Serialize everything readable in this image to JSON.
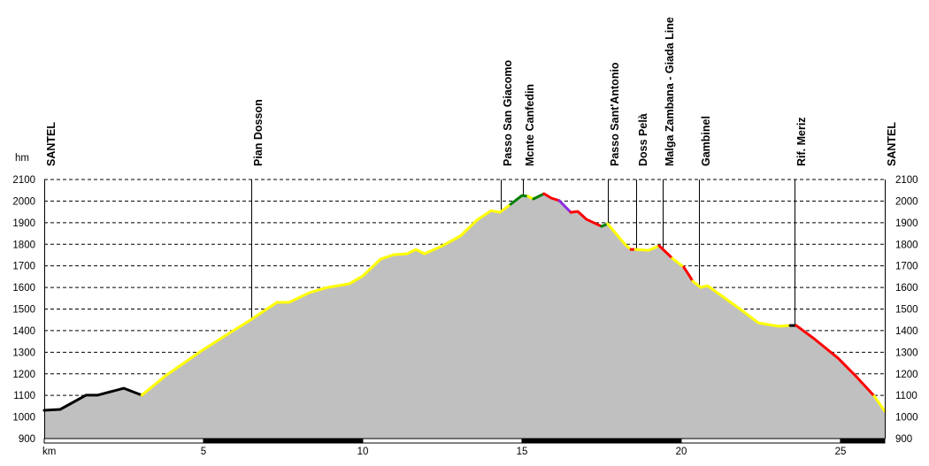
{
  "chart_data": {
    "type": "area",
    "title": "",
    "xlabel": "km",
    "ylabel": "hm",
    "xlim": [
      0,
      26.39
    ],
    "ylim": [
      900,
      2100
    ],
    "yticks": [
      900,
      1000,
      1100,
      1200,
      1300,
      1400,
      1500,
      1600,
      1700,
      1800,
      1900,
      2000,
      2100
    ],
    "xticks": [
      5,
      10,
      15,
      20,
      25
    ],
    "grid": true,
    "fill_color": "#c0c0c0",
    "segments": [
      {
        "color": "#000000",
        "points": [
          [
            0,
            1031
          ],
          [
            0.5,
            1035
          ],
          [
            1.31,
            1101
          ],
          [
            1.67,
            1101
          ],
          [
            2.5,
            1133
          ],
          [
            3.06,
            1101
          ]
        ]
      },
      {
        "color": "#ffff00",
        "points": [
          [
            3.06,
            1101
          ],
          [
            3.81,
            1191
          ],
          [
            4.92,
            1305
          ],
          [
            5.75,
            1383
          ],
          [
            6.47,
            1449
          ],
          [
            7.31,
            1531
          ],
          [
            7.69,
            1531
          ],
          [
            8.33,
            1576
          ],
          [
            8.89,
            1600
          ],
          [
            9.58,
            1617
          ],
          [
            10.0,
            1653
          ],
          [
            10.56,
            1731
          ],
          [
            10.97,
            1752
          ],
          [
            11.39,
            1756
          ],
          [
            11.67,
            1776
          ],
          [
            11.94,
            1756
          ],
          [
            12.5,
            1793
          ],
          [
            13.06,
            1838
          ],
          [
            13.61,
            1915
          ],
          [
            14.03,
            1956
          ],
          [
            14.31,
            1948
          ],
          [
            14.64,
            1985
          ]
        ]
      },
      {
        "color": "#008000",
        "points": [
          [
            14.64,
            1985
          ],
          [
            15.0,
            2026
          ],
          [
            15.19,
            2022
          ]
        ]
      },
      {
        "color": "#ffff00",
        "points": [
          [
            15.19,
            2022
          ],
          [
            15.36,
            2010
          ]
        ]
      },
      {
        "color": "#008000",
        "points": [
          [
            15.36,
            2010
          ],
          [
            15.69,
            2034
          ]
        ]
      },
      {
        "color": "#ff0000",
        "points": [
          [
            15.69,
            2034
          ],
          [
            15.92,
            2014
          ],
          [
            16.17,
            2002
          ]
        ]
      },
      {
        "color": "#8a2be2",
        "points": [
          [
            16.17,
            2002
          ],
          [
            16.53,
            1948
          ]
        ]
      },
      {
        "color": "#ff0000",
        "points": [
          [
            16.53,
            1948
          ],
          [
            16.75,
            1952
          ],
          [
            17.03,
            1915
          ],
          [
            17.5,
            1883
          ]
        ]
      },
      {
        "color": "#008000",
        "points": [
          [
            17.5,
            1883
          ],
          [
            17.69,
            1895
          ]
        ]
      },
      {
        "color": "#ffff00",
        "points": [
          [
            17.69,
            1895
          ],
          [
            18.25,
            1797
          ],
          [
            18.42,
            1776
          ]
        ]
      },
      {
        "color": "#ff0000",
        "points": [
          [
            18.42,
            1776
          ],
          [
            18.56,
            1776
          ]
        ]
      },
      {
        "color": "#ffff00",
        "points": [
          [
            18.56,
            1776
          ],
          [
            18.97,
            1772
          ],
          [
            19.31,
            1793
          ]
        ]
      },
      {
        "color": "#ff0000",
        "points": [
          [
            19.31,
            1793
          ],
          [
            19.72,
            1735
          ]
        ]
      },
      {
        "color": "#ffff00",
        "points": [
          [
            19.72,
            1735
          ],
          [
            20.08,
            1694
          ]
        ]
      },
      {
        "color": "#ff0000",
        "points": [
          [
            20.08,
            1694
          ],
          [
            20.28,
            1649
          ],
          [
            20.36,
            1629
          ]
        ]
      },
      {
        "color": "#ffff00",
        "points": [
          [
            20.36,
            1629
          ],
          [
            20.61,
            1600
          ],
          [
            20.83,
            1608
          ],
          [
            21.94,
            1490
          ],
          [
            22.42,
            1436
          ],
          [
            23.06,
            1420
          ],
          [
            23.42,
            1424
          ]
        ]
      },
      {
        "color": "#000000",
        "points": [
          [
            23.42,
            1424
          ],
          [
            23.61,
            1424
          ]
        ]
      },
      {
        "color": "#ff0000",
        "points": [
          [
            23.61,
            1424
          ],
          [
            24.17,
            1363
          ],
          [
            24.92,
            1273
          ],
          [
            25.47,
            1191
          ],
          [
            26.06,
            1097
          ]
        ]
      },
      {
        "color": "#ffff00",
        "points": [
          [
            26.06,
            1097
          ],
          [
            26.39,
            1027
          ]
        ]
      }
    ],
    "waypoints": [
      {
        "name": "SANTEL",
        "km": 0
      },
      {
        "name": "Pian Dosson",
        "km": 6.5
      },
      {
        "name": "Passo San Giacomo",
        "km": 14.33
      },
      {
        "name": "Mcnte Canfedin",
        "km": 15.03
      },
      {
        "name": "Passo Sant'Antonio",
        "km": 17.69
      },
      {
        "name": "Doss Pelà",
        "km": 18.58
      },
      {
        "name": "Malga Zambana - Giada Line",
        "km": 19.42
      },
      {
        "name": "Gambinel",
        "km": 20.56
      },
      {
        "name": "Rif. Meriz",
        "km": 23.56
      },
      {
        "name": "SANTEL",
        "km": 26.39
      }
    ]
  }
}
